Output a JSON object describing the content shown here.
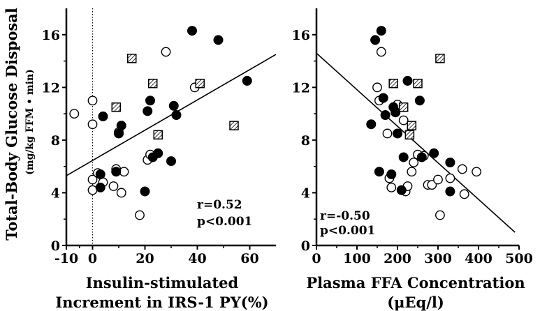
{
  "ylabel": "Total-Body Glucose Disposal",
  "yunits": "(mg/kg FFM • min)",
  "chart_data": [
    {
      "type": "scatter",
      "xlabel_line1": "Insulin-stimulated",
      "xlabel_line2": "Increment in IRS-1 PY(%)",
      "xlim": [
        -10,
        70
      ],
      "ylim": [
        0,
        18
      ],
      "xticks": [
        "-10",
        "0",
        "20",
        "40",
        "60"
      ],
      "yticks": [
        "0",
        "4",
        "8",
        "12",
        "16"
      ],
      "zero_reference_line": 0,
      "stats_line1": "r=0.52",
      "stats_line2": "p<0.001",
      "regression": {
        "x": [
          -10,
          70
        ],
        "y": [
          5.3,
          14.5
        ]
      },
      "series": [
        {
          "marker": "open-circle",
          "points": [
            [
              -7,
              10.0
            ],
            [
              0,
              11.0
            ],
            [
              0,
              9.2
            ],
            [
              0,
              5.0
            ],
            [
              0,
              4.2
            ],
            [
              2,
              5.5
            ],
            [
              4,
              4.8
            ],
            [
              8,
              4.5
            ],
            [
              9,
              5.8
            ],
            [
              10,
              8.6
            ],
            [
              11,
              4.0
            ],
            [
              12,
              5.6
            ],
            [
              18,
              2.3
            ],
            [
              21,
              6.5
            ],
            [
              22,
              6.9
            ],
            [
              28,
              14.7
            ],
            [
              39,
              12.0
            ]
          ]
        },
        {
          "marker": "filled-circle",
          "points": [
            [
              3,
              5.4
            ],
            [
              3,
              4.4
            ],
            [
              4,
              9.8
            ],
            [
              9,
              5.6
            ],
            [
              10,
              8.5
            ],
            [
              11,
              9.1
            ],
            [
              20,
              4.1
            ],
            [
              21,
              10.2
            ],
            [
              22,
              11.0
            ],
            [
              23,
              6.7
            ],
            [
              25,
              7.0
            ],
            [
              30,
              6.4
            ],
            [
              31,
              10.6
            ],
            [
              32,
              9.9
            ],
            [
              38,
              16.3
            ],
            [
              48,
              15.6
            ],
            [
              59,
              12.5
            ]
          ]
        },
        {
          "marker": "hatched-square",
          "points": [
            [
              9,
              10.5
            ],
            [
              15,
              14.2
            ],
            [
              23,
              12.3
            ],
            [
              25,
              8.4
            ],
            [
              41,
              12.3
            ],
            [
              54,
              9.1
            ]
          ]
        }
      ]
    },
    {
      "type": "scatter",
      "xlabel_line1": "Plasma FFA Concentration",
      "xlabel_line2": "(μEq/l)",
      "xlim": [
        0,
        500
      ],
      "ylim": [
        0,
        18
      ],
      "xticks": [
        "0",
        "100",
        "200",
        "300",
        "400",
        "500"
      ],
      "yticks": [
        "0",
        "4",
        "8",
        "12",
        "16"
      ],
      "stats_line1": "r=-0.50",
      "stats_line2": "p<0.001",
      "regression": {
        "x": [
          0,
          490
        ],
        "y": [
          14.6,
          1.0
        ]
      },
      "series": [
        {
          "marker": "open-circle",
          "points": [
            [
              150,
              12.0
            ],
            [
              155,
              11.0
            ],
            [
              160,
              14.7
            ],
            [
              175,
              8.5
            ],
            [
              180,
              5.1
            ],
            [
              185,
              4.4
            ],
            [
              200,
              10.7
            ],
            [
              215,
              9.5
            ],
            [
              220,
              4.1
            ],
            [
              225,
              4.5
            ],
            [
              235,
              5.6
            ],
            [
              240,
              6.3
            ],
            [
              250,
              6.9
            ],
            [
              265,
              6.8
            ],
            [
              275,
              4.6
            ],
            [
              285,
              4.6
            ],
            [
              300,
              5.0
            ],
            [
              305,
              2.3
            ],
            [
              330,
              5.1
            ],
            [
              360,
              5.8
            ],
            [
              365,
              3.9
            ],
            [
              395,
              5.6
            ]
          ]
        },
        {
          "marker": "filled-circle",
          "points": [
            [
              135,
              9.2
            ],
            [
              145,
              15.6
            ],
            [
              155,
              5.6
            ],
            [
              160,
              16.3
            ],
            [
              165,
              11.2
            ],
            [
              170,
              9.9
            ],
            [
              185,
              5.4
            ],
            [
              190,
              10.5
            ],
            [
              195,
              10.1
            ],
            [
              200,
              8.5
            ],
            [
              210,
              4.2
            ],
            [
              215,
              6.7
            ],
            [
              225,
              12.5
            ],
            [
              255,
              11.0
            ],
            [
              260,
              6.7
            ],
            [
              290,
              7.0
            ],
            [
              330,
              6.3
            ],
            [
              330,
              4.1
            ]
          ]
        },
        {
          "marker": "hatched-square",
          "points": [
            [
              190,
              12.3
            ],
            [
              215,
              10.5
            ],
            [
              230,
              8.4
            ],
            [
              235,
              9.1
            ],
            [
              250,
              12.3
            ],
            [
              305,
              14.2
            ]
          ]
        }
      ]
    }
  ]
}
